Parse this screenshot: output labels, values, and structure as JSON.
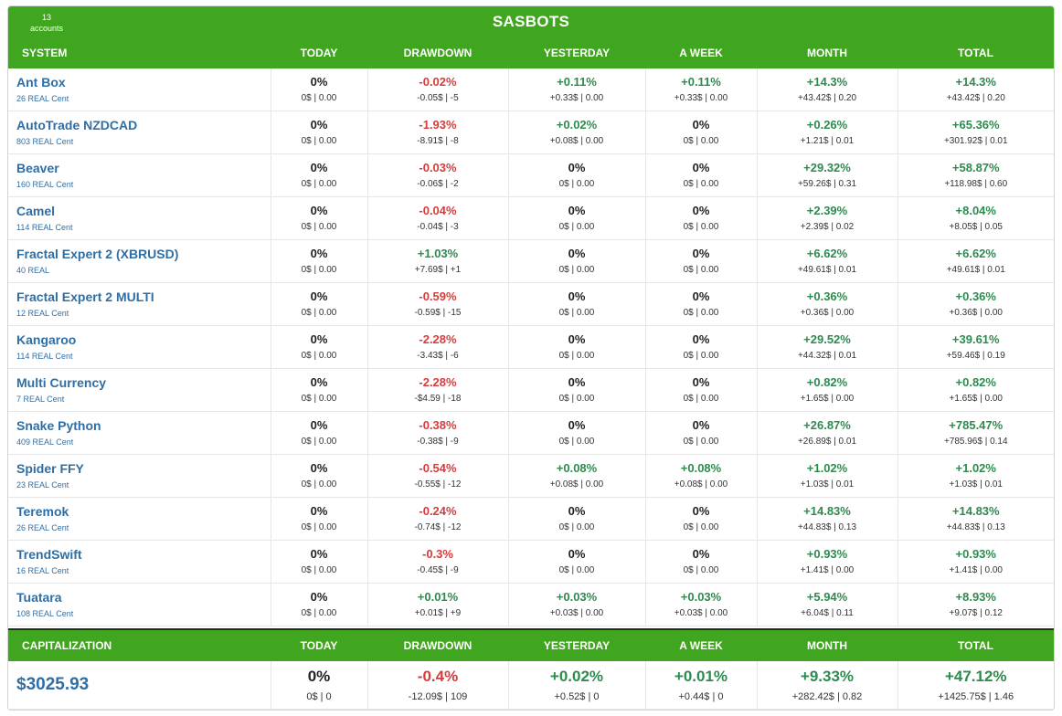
{
  "header": {
    "title": "SASBOTS",
    "accounts_count": "13",
    "accounts_label": "accounts"
  },
  "columns": [
    "SYSTEM",
    "TODAY",
    "DRAWDOWN",
    "YESTERDAY",
    "A WEEK",
    "MONTH",
    "TOTAL"
  ],
  "colors": {
    "header_green": "#41a61f",
    "positive": "#2e8b4f",
    "negative": "#d63c3c",
    "link": "#2f6ea5"
  },
  "systems": [
    {
      "name": "Ant Box",
      "sub": "26 REAL Cent",
      "cells": [
        [
          "0%",
          "0$ | 0.00",
          "neu"
        ],
        [
          "-0.02%",
          "-0.05$ | -5",
          "neg"
        ],
        [
          "+0.11%",
          "+0.33$ | 0.00",
          "pos"
        ],
        [
          "+0.11%",
          "+0.33$ | 0.00",
          "pos"
        ],
        [
          "+14.3%",
          "+43.42$ | 0.20",
          "pos"
        ],
        [
          "+14.3%",
          "+43.42$ | 0.20",
          "pos"
        ]
      ]
    },
    {
      "name": "AutoTrade NZDCAD",
      "sub": "803 REAL Cent",
      "cells": [
        [
          "0%",
          "0$ | 0.00",
          "neu"
        ],
        [
          "-1.93%",
          "-8.91$ | -8",
          "neg"
        ],
        [
          "+0.02%",
          "+0.08$ | 0.00",
          "pos"
        ],
        [
          "0%",
          "0$ | 0.00",
          "neu"
        ],
        [
          "+0.26%",
          "+1.21$ | 0.01",
          "pos"
        ],
        [
          "+65.36%",
          "+301.92$ | 0.01",
          "pos"
        ]
      ]
    },
    {
      "name": "Beaver",
      "sub": "160 REAL Cent",
      "cells": [
        [
          "0%",
          "0$ | 0.00",
          "neu"
        ],
        [
          "-0.03%",
          "-0.06$ | -2",
          "neg"
        ],
        [
          "0%",
          "0$ | 0.00",
          "neu"
        ],
        [
          "0%",
          "0$ | 0.00",
          "neu"
        ],
        [
          "+29.32%",
          "+59.26$ | 0.31",
          "pos"
        ],
        [
          "+58.87%",
          "+118.98$ | 0.60",
          "pos"
        ]
      ]
    },
    {
      "name": "Camel",
      "sub": "114 REAL Cent",
      "cells": [
        [
          "0%",
          "0$ | 0.00",
          "neu"
        ],
        [
          "-0.04%",
          "-0.04$ | -3",
          "neg"
        ],
        [
          "0%",
          "0$ | 0.00",
          "neu"
        ],
        [
          "0%",
          "0$ | 0.00",
          "neu"
        ],
        [
          "+2.39%",
          "+2.39$ | 0.02",
          "pos"
        ],
        [
          "+8.04%",
          "+8.05$ | 0.05",
          "pos"
        ]
      ]
    },
    {
      "name": "Fractal Expert 2 (XBRUSD)",
      "sub": "40 REAL",
      "cells": [
        [
          "0%",
          "0$ | 0.00",
          "neu"
        ],
        [
          "+1.03%",
          "+7.69$ | +1",
          "pos"
        ],
        [
          "0%",
          "0$ | 0.00",
          "neu"
        ],
        [
          "0%",
          "0$ | 0.00",
          "neu"
        ],
        [
          "+6.62%",
          "+49.61$ | 0.01",
          "pos"
        ],
        [
          "+6.62%",
          "+49.61$ | 0.01",
          "pos"
        ]
      ]
    },
    {
      "name": "Fractal Expert 2 MULTI",
      "sub": "12 REAL Cent",
      "cells": [
        [
          "0%",
          "0$ | 0.00",
          "neu"
        ],
        [
          "-0.59%",
          "-0.59$ | -15",
          "neg"
        ],
        [
          "0%",
          "0$ | 0.00",
          "neu"
        ],
        [
          "0%",
          "0$ | 0.00",
          "neu"
        ],
        [
          "+0.36%",
          "+0.36$ | 0.00",
          "pos"
        ],
        [
          "+0.36%",
          "+0.36$ | 0.00",
          "pos"
        ]
      ]
    },
    {
      "name": "Kangaroo",
      "sub": "114 REAL Cent",
      "cells": [
        [
          "0%",
          "0$ | 0.00",
          "neu"
        ],
        [
          "-2.28%",
          "-3.43$ | -6",
          "neg"
        ],
        [
          "0%",
          "0$ | 0.00",
          "neu"
        ],
        [
          "0%",
          "0$ | 0.00",
          "neu"
        ],
        [
          "+29.52%",
          "+44.32$ | 0.01",
          "pos"
        ],
        [
          "+39.61%",
          "+59.46$ | 0.19",
          "pos"
        ]
      ]
    },
    {
      "name": "Multi Currency",
      "sub": "7 REAL Cent",
      "cells": [
        [
          "0%",
          "0$ | 0.00",
          "neu"
        ],
        [
          "-2.28%",
          "-$4.59 | -18",
          "neg"
        ],
        [
          "0%",
          "0$ | 0.00",
          "neu"
        ],
        [
          "0%",
          "0$ | 0.00",
          "neu"
        ],
        [
          "+0.82%",
          "+1.65$ | 0.00",
          "pos"
        ],
        [
          "+0.82%",
          "+1.65$ | 0.00",
          "pos"
        ]
      ]
    },
    {
      "name": "Snake Python",
      "sub": "409 REAL Cent",
      "cells": [
        [
          "0%",
          "0$ | 0.00",
          "neu"
        ],
        [
          "-0.38%",
          "-0.38$ | -9",
          "neg"
        ],
        [
          "0%",
          "0$ | 0.00",
          "neu"
        ],
        [
          "0%",
          "0$ | 0.00",
          "neu"
        ],
        [
          "+26.87%",
          "+26.89$ | 0.01",
          "pos"
        ],
        [
          "+785.47%",
          "+785.96$ | 0.14",
          "pos"
        ]
      ]
    },
    {
      "name": "Spider FFY",
      "sub": "23 REAL Cent",
      "cells": [
        [
          "0%",
          "0$ | 0.00",
          "neu"
        ],
        [
          "-0.54%",
          "-0.55$ | -12",
          "neg"
        ],
        [
          "+0.08%",
          "+0.08$ | 0.00",
          "pos"
        ],
        [
          "+0.08%",
          "+0.08$ | 0.00",
          "pos"
        ],
        [
          "+1.02%",
          "+1.03$ | 0.01",
          "pos"
        ],
        [
          "+1.02%",
          "+1.03$ | 0.01",
          "pos"
        ]
      ]
    },
    {
      "name": "Teremok",
      "sub": "26 REAL Cent",
      "cells": [
        [
          "0%",
          "0$ | 0.00",
          "neu"
        ],
        [
          "-0.24%",
          "-0.74$ | -12",
          "neg"
        ],
        [
          "0%",
          "0$ | 0.00",
          "neu"
        ],
        [
          "0%",
          "0$ | 0.00",
          "neu"
        ],
        [
          "+14.83%",
          "+44.83$ | 0.13",
          "pos"
        ],
        [
          "+14.83%",
          "+44.83$ | 0.13",
          "pos"
        ]
      ]
    },
    {
      "name": "TrendSwift",
      "sub": "16 REAL Cent",
      "cells": [
        [
          "0%",
          "0$ | 0.00",
          "neu"
        ],
        [
          "-0.3%",
          "-0.45$ | -9",
          "neg"
        ],
        [
          "0%",
          "0$ | 0.00",
          "neu"
        ],
        [
          "0%",
          "0$ | 0.00",
          "neu"
        ],
        [
          "+0.93%",
          "+1.41$ | 0.00",
          "pos"
        ],
        [
          "+0.93%",
          "+1.41$ | 0.00",
          "pos"
        ]
      ]
    },
    {
      "name": "Tuatara",
      "sub": "108 REAL Cent",
      "cells": [
        [
          "0%",
          "0$ | 0.00",
          "neu"
        ],
        [
          "+0.01%",
          "+0.01$ | +9",
          "pos"
        ],
        [
          "+0.03%",
          "+0.03$ | 0.00",
          "pos"
        ],
        [
          "+0.03%",
          "+0.03$ | 0.00",
          "pos"
        ],
        [
          "+5.94%",
          "+6.04$ | 0.11",
          "pos"
        ],
        [
          "+8.93%",
          "+9.07$ | 0.12",
          "pos"
        ]
      ]
    }
  ],
  "capitalization": {
    "columns": [
      "CAPITALIZATION",
      "TODAY",
      "DRAWDOWN",
      "YESTERDAY",
      "A WEEK",
      "MONTH",
      "TOTAL"
    ],
    "value": "$3025.93",
    "cells": [
      [
        "0%",
        "0$ | 0",
        "neu"
      ],
      [
        "-0.4%",
        "-12.09$ | 109",
        "neg"
      ],
      [
        "+0.02%",
        "+0.52$ | 0",
        "pos"
      ],
      [
        "+0.01%",
        "+0.44$ | 0",
        "pos"
      ],
      [
        "+9.33%",
        "+282.42$ | 0.82",
        "pos"
      ],
      [
        "+47.12%",
        "+1425.75$ | 1.46",
        "pos"
      ]
    ]
  }
}
